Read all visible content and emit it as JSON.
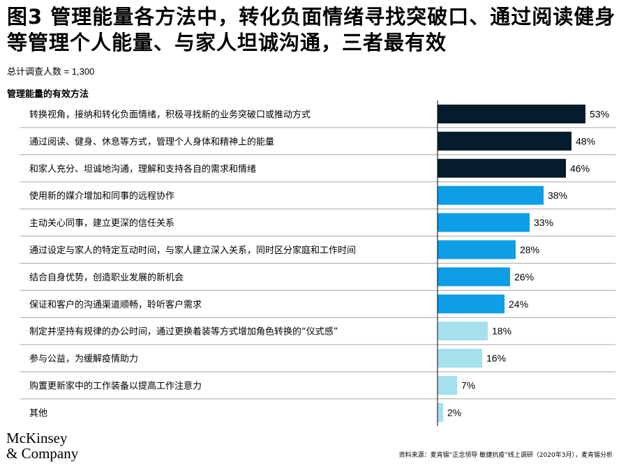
{
  "title": "图3 管理能量各方法中，转化负面情绪寻找突破口、通过阅读健身等管理个人能量、与家人坦诚沟通，三者最有效",
  "subtitle": "总计调查人数 = 1,300",
  "section_label": "管理能量的有效方法",
  "logo": {
    "line1": "McKinsey",
    "line2": "& Company"
  },
  "source": "资料来源：麦肯锡“正念领导 敏捷抗疫”线上调研（2020年3月），麦肯锡分析",
  "colors": {
    "dark": "#051c2c",
    "mid": "#0d9ee6",
    "light": "#a6e0ed",
    "separator": "#a6a6a6",
    "axis": "#000000"
  },
  "chart_data": {
    "type": "bar",
    "orientation": "horizontal",
    "unit": "%",
    "categories": [
      "转换视角，接纳和转化负面情绪，积极寻找新的业务突破口或推动方式",
      "通过阅读、健身、休息等方式，管理个人身体和精神上的能量",
      "和家人充分、坦诚地沟通，理解和支持各自的需求和情绪",
      "使用新的媒介增加和同事的远程协作",
      "主动关心同事，建立更深的信任关系",
      "通过设定与家人的特定互动时间，与家人建立深入关系，同时区分家庭和工作时间",
      "结合自身优势，创造职业发展的新机会",
      "保证和客户的沟通渠道顺畅，聆听客户需求",
      "制定并坚持有规律的办公时间，通过更换着装等方式增加角色转换的“仪式感”",
      "参与公益，为缓解疫情助力",
      "购置更新家中的工作装备以提高工作注意力",
      "其他"
    ],
    "values": [
      53,
      48,
      46,
      38,
      33,
      28,
      26,
      24,
      18,
      16,
      7,
      2
    ],
    "labels": [
      "53%",
      "48%",
      "46%",
      "38%",
      "33%",
      "28%",
      "26%",
      "24%",
      "18%",
      "16%",
      "7%",
      "2%"
    ],
    "bar_colors": [
      "#051c2c",
      "#051c2c",
      "#051c2c",
      "#0d9ee6",
      "#0d9ee6",
      "#0d9ee6",
      "#0d9ee6",
      "#0d9ee6",
      "#a6e0ed",
      "#a6e0ed",
      "#a6e0ed",
      "#a6e0ed"
    ],
    "xlim": [
      0,
      100
    ],
    "grid": false,
    "legend": "none"
  }
}
